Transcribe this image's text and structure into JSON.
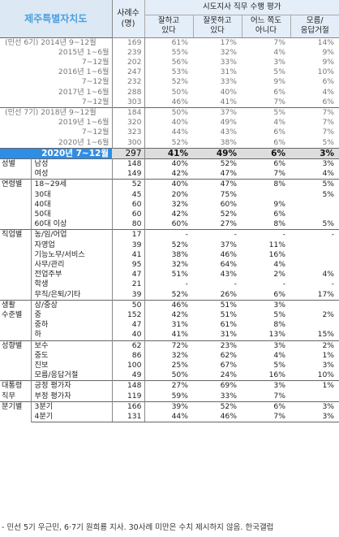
{
  "header": {
    "region": "제주특별자치도",
    "sample_l1": "사례수",
    "sample_l2": "(명)",
    "group_title": "시도지사 직무 수행 평가",
    "col1_l1": "잘하고",
    "col1_l2": "있다",
    "col2_l1": "잘못하고",
    "col2_l2": "있다",
    "col3_l1": "어느 쪽도",
    "col3_l2": "아니다",
    "col4_l1": "모름/",
    "col4_l2": "응답거절"
  },
  "trend_6": [
    {
      "label": "(민선 6기) 2014년 9~12월",
      "n": "169",
      "good": "61%",
      "bad": "17%",
      "neither": "7%",
      "dk": "14%"
    },
    {
      "label": "2015년 1~6월",
      "n": "239",
      "good": "55%",
      "bad": "32%",
      "neither": "4%",
      "dk": "9%"
    },
    {
      "label": "7~12월",
      "n": "202",
      "good": "56%",
      "bad": "33%",
      "neither": "3%",
      "dk": "9%"
    },
    {
      "label": "2016년 1~6월",
      "n": "247",
      "good": "53%",
      "bad": "31%",
      "neither": "5%",
      "dk": "10%"
    },
    {
      "label": "7~12월",
      "n": "232",
      "good": "52%",
      "bad": "33%",
      "neither": "9%",
      "dk": "6%"
    },
    {
      "label": "2017년 1~6월",
      "n": "288",
      "good": "50%",
      "bad": "40%",
      "neither": "6%",
      "dk": "4%"
    },
    {
      "label": "7~12월",
      "n": "303",
      "good": "46%",
      "bad": "41%",
      "neither": "7%",
      "dk": "6%"
    }
  ],
  "trend_7": [
    {
      "label": "(민선 7기) 2018년 9~12월",
      "n": "184",
      "good": "50%",
      "bad": "37%",
      "neither": "5%",
      "dk": "7%"
    },
    {
      "label": "2019년 1~6월",
      "n": "320",
      "good": "40%",
      "bad": "49%",
      "neither": "4%",
      "dk": "7%"
    },
    {
      "label": "7~12월",
      "n": "323",
      "good": "44%",
      "bad": "43%",
      "neither": "6%",
      "dk": "7%"
    },
    {
      "label": "2020년 1~6월",
      "n": "300",
      "good": "52%",
      "bad": "38%",
      "neither": "6%",
      "dk": "5%"
    }
  ],
  "current": {
    "label": "2020년 7~12월",
    "n": "297",
    "good": "41%",
    "bad": "49%",
    "neither": "6%",
    "dk": "3%"
  },
  "groups": [
    {
      "name": "성별",
      "name2": "",
      "rows": [
        {
          "label": "남성",
          "n": "148",
          "good": "40%",
          "bad": "52%",
          "neither": "6%",
          "dk": "3%"
        },
        {
          "label": "여성",
          "n": "149",
          "good": "42%",
          "bad": "47%",
          "neither": "7%",
          "dk": "4%"
        }
      ]
    },
    {
      "name": "연령별",
      "name2": "",
      "rows": [
        {
          "label": "18~29세",
          "n": "52",
          "good": "40%",
          "bad": "47%",
          "neither": "8%",
          "dk": "5%"
        },
        {
          "label": "30대",
          "n": "45",
          "good": "20%",
          "bad": "75%",
          "neither": "",
          "dk": "5%"
        },
        {
          "label": "40대",
          "n": "60",
          "good": "32%",
          "bad": "60%",
          "neither": "9%",
          "dk": ""
        },
        {
          "label": "50대",
          "n": "60",
          "good": "42%",
          "bad": "52%",
          "neither": "6%",
          "dk": ""
        },
        {
          "label": "60대 이상",
          "n": "80",
          "good": "60%",
          "bad": "27%",
          "neither": "8%",
          "dk": "5%"
        }
      ]
    },
    {
      "name": "직업별",
      "name2": "",
      "rows": [
        {
          "label": "농/임/어업",
          "n": "17",
          "good": "-",
          "bad": "-",
          "neither": "-",
          "dk": "-"
        },
        {
          "label": "자영업",
          "n": "39",
          "good": "52%",
          "bad": "37%",
          "neither": "11%",
          "dk": ""
        },
        {
          "label": "기능노무/서비스",
          "n": "41",
          "good": "38%",
          "bad": "46%",
          "neither": "16%",
          "dk": ""
        },
        {
          "label": "사무/관리",
          "n": "95",
          "good": "32%",
          "bad": "64%",
          "neither": "4%",
          "dk": ""
        },
        {
          "label": "전업주부",
          "n": "47",
          "good": "51%",
          "bad": "43%",
          "neither": "2%",
          "dk": "4%"
        },
        {
          "label": "학생",
          "n": "21",
          "good": "-",
          "bad": "-",
          "neither": "-",
          "dk": "-"
        },
        {
          "label": "무직/은퇴/기타",
          "n": "39",
          "good": "52%",
          "bad": "26%",
          "neither": "6%",
          "dk": "17%"
        }
      ]
    },
    {
      "name": "생활",
      "name2": "수준별",
      "rows": [
        {
          "label": "상/중상",
          "n": "50",
          "good": "46%",
          "bad": "51%",
          "neither": "3%",
          "dk": ""
        },
        {
          "label": "중",
          "n": "152",
          "good": "42%",
          "bad": "51%",
          "neither": "5%",
          "dk": "2%"
        },
        {
          "label": "중하",
          "n": "47",
          "good": "31%",
          "bad": "61%",
          "neither": "8%",
          "dk": ""
        },
        {
          "label": "하",
          "n": "40",
          "good": "41%",
          "bad": "31%",
          "neither": "13%",
          "dk": "15%"
        }
      ]
    },
    {
      "name": "성향별",
      "name2": "",
      "rows": [
        {
          "label": "보수",
          "n": "62",
          "good": "72%",
          "bad": "23%",
          "neither": "3%",
          "dk": "2%"
        },
        {
          "label": "중도",
          "n": "86",
          "good": "32%",
          "bad": "62%",
          "neither": "4%",
          "dk": "1%"
        },
        {
          "label": "진보",
          "n": "100",
          "good": "25%",
          "bad": "67%",
          "neither": "5%",
          "dk": "3%"
        },
        {
          "label": "모름/응답거절",
          "n": "49",
          "good": "50%",
          "bad": "24%",
          "neither": "16%",
          "dk": "10%"
        }
      ]
    },
    {
      "name": "대통령",
      "name2": "직무",
      "rows": [
        {
          "label": "긍정 평가자",
          "n": "148",
          "good": "27%",
          "bad": "69%",
          "neither": "3%",
          "dk": "1%"
        },
        {
          "label": "부정 평가자",
          "n": "119",
          "good": "59%",
          "bad": "33%",
          "neither": "7%",
          "dk": ""
        }
      ]
    },
    {
      "name": "분기별",
      "name2": "",
      "rows": [
        {
          "label": "3분기",
          "n": "166",
          "good": "39%",
          "bad": "52%",
          "neither": "6%",
          "dk": "3%"
        },
        {
          "label": "4분기",
          "n": "131",
          "good": "44%",
          "bad": "46%",
          "neither": "7%",
          "dk": "3%"
        }
      ]
    }
  ],
  "footnote": "- 민선 5기 우근민, 6·7기 원희룡 지사. 30사례 미만은 수치 제시하지 않음. 한국갤럽",
  "colors": {
    "highlight": "#2e8ee6",
    "header_bg": "#e4eef8",
    "title_text": "#4aa0e0"
  }
}
